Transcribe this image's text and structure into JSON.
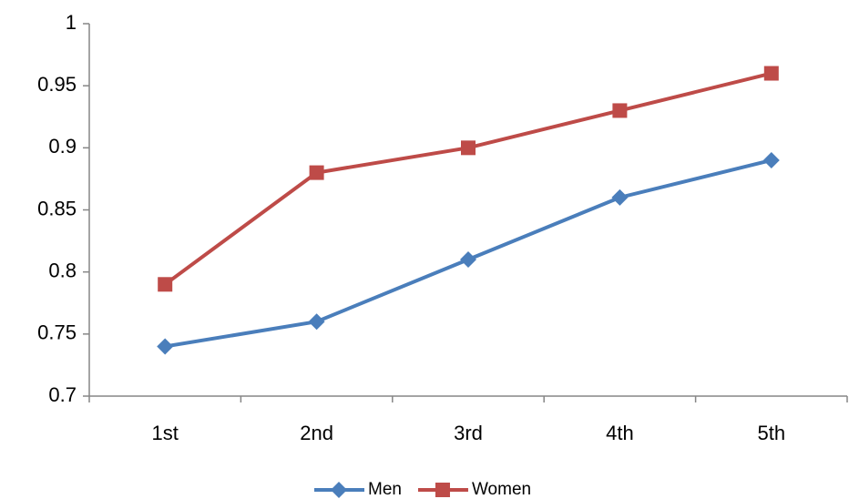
{
  "chart_data": {
    "type": "line",
    "categories": [
      "1st",
      "2nd",
      "3rd",
      "4th",
      "5th"
    ],
    "series": [
      {
        "name": "Men",
        "color": "#4a7ebb",
        "marker": "diamond",
        "values": [
          0.74,
          0.76,
          0.81,
          0.86,
          0.89
        ]
      },
      {
        "name": "Women",
        "color": "#be4b48",
        "marker": "square",
        "values": [
          0.79,
          0.88,
          0.9,
          0.93,
          0.96
        ]
      }
    ],
    "ylim": [
      0.7,
      1
    ],
    "yticks": [
      0.7,
      0.75,
      0.8,
      0.85,
      0.9,
      0.95,
      1
    ],
    "grid": false,
    "legend": "bottom"
  }
}
